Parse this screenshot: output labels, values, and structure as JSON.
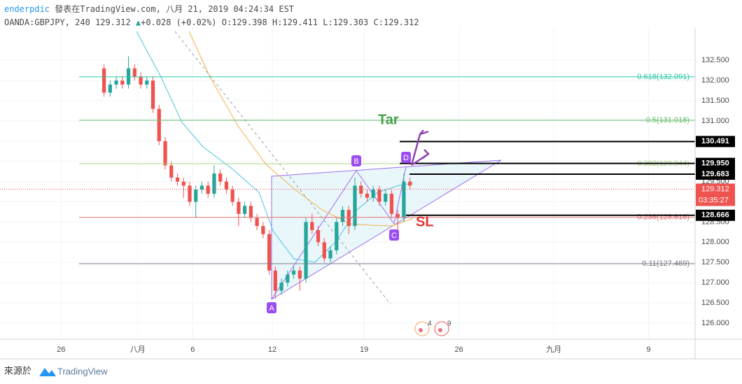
{
  "header": {
    "author": "enderpdic",
    "published": "發表在TradingView.com, 八月 21, 2019 04:24:34 EST",
    "symbol": "OANDA:GBPJPY, 240",
    "last": "129.312",
    "arrow": "▲",
    "change": "+0.028 (+0.02%)",
    "open": "O:129.398",
    "high": "H:129.411",
    "low": "L:129.303",
    "close": "C:129.312"
  },
  "footer": {
    "source": "來源於",
    "brand": "TradingView"
  },
  "annotations": {
    "a": "A",
    "b": "B",
    "c": "C",
    "d": "D",
    "target": "Tar",
    "stop": "SL",
    "event1": "4",
    "event2": "9"
  },
  "chart_data": {
    "type": "candlestick",
    "up_color": "#26a69a",
    "down_color": "#ef5350",
    "x": [
      34,
      36,
      38,
      40,
      42,
      44,
      46,
      48,
      50,
      52,
      54,
      56,
      58,
      60,
      62,
      64,
      66,
      68,
      70,
      72,
      74,
      76,
      78,
      80,
      82,
      84,
      86,
      88,
      90,
      92,
      94,
      96,
      98,
      100,
      102,
      104,
      106,
      108,
      110,
      112,
      114,
      116,
      118,
      120,
      122,
      124,
      126,
      128,
      130,
      132,
      134
    ],
    "open": [
      132.3,
      131.7,
      131.9,
      132.0,
      131.9,
      132.3,
      132.1,
      131.9,
      132.0,
      131.3,
      130.5,
      129.9,
      129.6,
      129.5,
      129.4,
      129.0,
      129.3,
      129.4,
      129.2,
      129.7,
      129.5,
      129.3,
      129.0,
      128.7,
      128.9,
      128.6,
      128.4,
      128.2,
      127.3,
      126.8,
      127.0,
      127.2,
      127.3,
      127.1,
      128.5,
      128.3,
      128.0,
      127.6,
      127.8,
      128.5,
      128.8,
      128.4,
      129.4,
      129.2,
      129.1,
      129.3,
      129.0,
      129.2,
      128.7,
      128.6,
      129.5
    ],
    "high": [
      132.4,
      132.0,
      132.1,
      132.1,
      132.6,
      132.4,
      132.2,
      132.1,
      132.1,
      131.4,
      130.6,
      130.0,
      129.7,
      129.6,
      129.5,
      129.4,
      129.5,
      129.5,
      129.9,
      129.8,
      129.6,
      129.4,
      129.1,
      129.0,
      129.0,
      128.7,
      128.5,
      128.3,
      127.4,
      127.1,
      127.3,
      127.4,
      127.4,
      128.6,
      128.7,
      128.4,
      128.1,
      127.9,
      128.6,
      128.9,
      128.9,
      129.6,
      129.5,
      129.3,
      129.4,
      129.4,
      129.3,
      129.3,
      128.8,
      129.7,
      129.6
    ],
    "low": [
      131.6,
      131.6,
      131.8,
      131.8,
      131.8,
      132.0,
      131.8,
      131.8,
      131.2,
      130.4,
      129.8,
      129.5,
      129.4,
      129.1,
      128.9,
      128.6,
      129.2,
      129.1,
      129.1,
      129.4,
      129.2,
      128.9,
      128.4,
      128.6,
      128.5,
      128.3,
      128.1,
      127.2,
      126.6,
      126.7,
      126.9,
      127.1,
      126.8,
      127.0,
      128.2,
      127.9,
      127.5,
      127.5,
      127.7,
      128.4,
      128.2,
      128.3,
      129.1,
      129.0,
      129.0,
      128.9,
      128.9,
      128.6,
      128.3,
      128.5,
      129.3
    ],
    "close": [
      131.7,
      131.9,
      132.0,
      131.9,
      132.3,
      132.1,
      131.9,
      132.0,
      131.3,
      130.5,
      129.9,
      129.6,
      129.5,
      129.4,
      129.0,
      129.3,
      129.4,
      129.2,
      129.7,
      129.5,
      129.3,
      129.0,
      128.7,
      128.9,
      128.6,
      128.4,
      128.2,
      127.3,
      126.8,
      127.0,
      127.2,
      127.3,
      127.1,
      128.5,
      128.3,
      128.0,
      127.6,
      127.8,
      128.5,
      128.8,
      128.4,
      129.4,
      129.2,
      129.1,
      129.3,
      129.0,
      129.2,
      128.7,
      128.6,
      129.5,
      129.4
    ],
    "xlim": [
      0,
      227.2
    ],
    "xticks": [
      {
        "value": 20,
        "label": "26"
      },
      {
        "value": 45,
        "label": "八月"
      },
      {
        "value": 63,
        "label": "6"
      },
      {
        "value": 89,
        "label": "12"
      },
      {
        "value": 119,
        "label": "19"
      },
      {
        "value": 150,
        "label": "26"
      },
      {
        "value": 181,
        "label": "九月"
      },
      {
        "value": 212,
        "label": "9"
      }
    ],
    "ylim": [
      125.6,
      133.3
    ],
    "yticks": [
      {
        "value": 126.0,
        "label": "126.000"
      },
      {
        "value": 126.5,
        "label": "126.500"
      },
      {
        "value": 127.0,
        "label": "127.000"
      },
      {
        "value": 127.5,
        "label": "127.500"
      },
      {
        "value": 128.0,
        "label": "128.000"
      },
      {
        "value": 128.5,
        "label": "128.500"
      },
      {
        "value": 129.0,
        "label": "129.000"
      },
      {
        "value": 129.5,
        "label": "129.500"
      },
      {
        "value": 130.0,
        "label": "130.000"
      },
      {
        "value": 130.5,
        "label": "130.500"
      },
      {
        "value": 131.0,
        "label": "131.000"
      },
      {
        "value": 131.5,
        "label": "131.500"
      },
      {
        "value": 132.0,
        "label": "132.000"
      },
      {
        "value": 132.5,
        "label": "132.500"
      }
    ],
    "fib_levels": [
      {
        "value": 132.091,
        "label": "0.618(132.091)",
        "color": "#26c6a6"
      },
      {
        "value": 131.018,
        "label": "0.5(131.018)",
        "color": "#66bb6a"
      },
      {
        "value": 129.944,
        "label": "0.382(129.944)",
        "color": "#aed581"
      },
      {
        "value": 128.616,
        "label": "0.236(128.616)",
        "color": "#e57373"
      },
      {
        "value": 127.469,
        "label": "0.11(127.469)",
        "color": "#787b86"
      }
    ],
    "levels": [
      {
        "value": 130.491,
        "label": "130.491"
      },
      {
        "value": 129.95,
        "label": "129.950"
      },
      {
        "value": 129.683,
        "label": "129.683"
      },
      {
        "value": 128.666,
        "label": "128.666"
      }
    ],
    "current_price": {
      "value": 129.312,
      "label": "129.312",
      "countdown": "03:35:27",
      "color": "#ef5350"
    },
    "grid": true
  }
}
